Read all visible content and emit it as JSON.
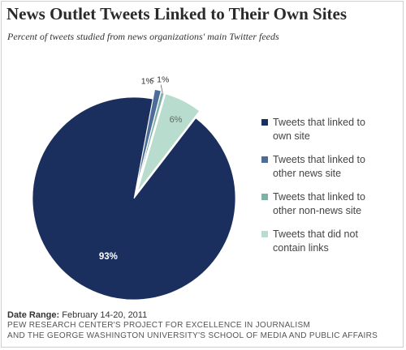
{
  "title": "News Outlet Tweets Linked to Their Own Sites",
  "subtitle": "Percent of tweets studied from news organizations' main Twitter feeds",
  "chart_data": {
    "type": "pie",
    "title": "News Outlet Tweets Linked to Their Own Sites",
    "subtitle": "Percent of tweets studied from news organizations' main Twitter feeds",
    "slices": [
      {
        "label": "Tweets that linked to\nown site",
        "value": 93,
        "display": "93%",
        "color": "#1b2f5e"
      },
      {
        "label": "Tweets that linked to\nother news site",
        "value": 1,
        "display": "1%",
        "color": "#4d6c9a"
      },
      {
        "label": "Tweets that linked to\nother non-news site",
        "value": 0.5,
        "display": "< 1%",
        "color": "#7fb2a6"
      },
      {
        "label": "Tweets that did not\ncontain links",
        "value": 6,
        "display": "6%",
        "color": "#b8dccd"
      }
    ],
    "legend_position": "right"
  },
  "footer": {
    "date_label": "Date Range:",
    "date_value": "February 14-20, 2011",
    "source_line1": "PEW RESEARCH CENTER'S PROJECT FOR EXCELLENCE IN JOURNALISM",
    "source_line2": "AND THE GEORGE WASHINGTON UNIVERSITY'S SCHOOL OF MEDIA AND PUBLIC AFFAIRS"
  }
}
